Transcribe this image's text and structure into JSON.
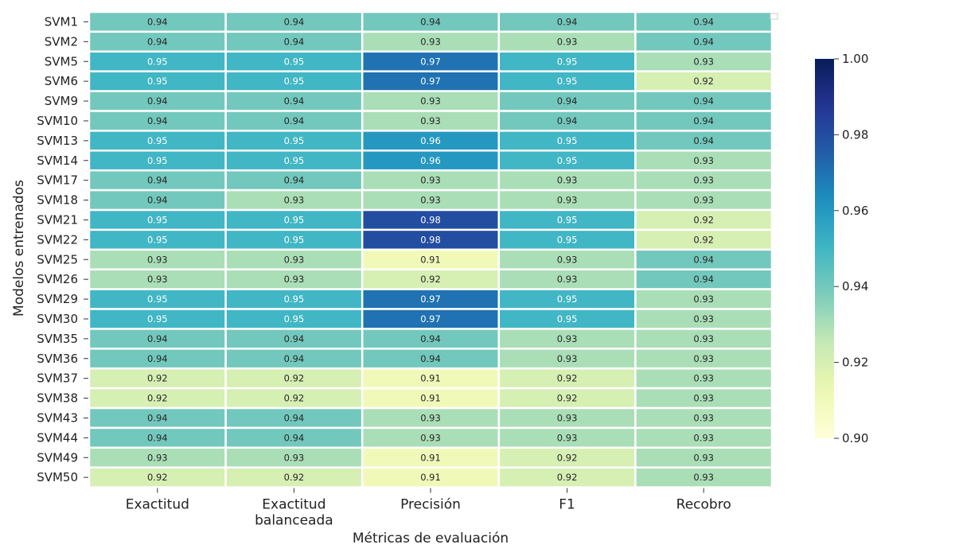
{
  "chart_data": {
    "type": "heatmap",
    "title": "",
    "xlabel": "Métricas de evaluación",
    "ylabel": "Modelos entrenados",
    "columns": [
      "Exactitud",
      "Exactitud\nbalanceada",
      "Precisión",
      "F1",
      "Recobro"
    ],
    "rows": [
      "SVM1",
      "SVM2",
      "SVM5",
      "SVM6",
      "SVM9",
      "SVM10",
      "SVM13",
      "SVM14",
      "SVM17",
      "SVM18",
      "SVM21",
      "SVM22",
      "SVM25",
      "SVM26",
      "SVM29",
      "SVM30",
      "SVM35",
      "SVM36",
      "SVM37",
      "SVM38",
      "SVM43",
      "SVM44",
      "SVM49",
      "SVM50"
    ],
    "values": [
      [
        0.94,
        0.94,
        0.94,
        0.94,
        0.94
      ],
      [
        0.94,
        0.94,
        0.93,
        0.93,
        0.94
      ],
      [
        0.95,
        0.95,
        0.97,
        0.95,
        0.93
      ],
      [
        0.95,
        0.95,
        0.97,
        0.95,
        0.92
      ],
      [
        0.94,
        0.94,
        0.93,
        0.94,
        0.94
      ],
      [
        0.94,
        0.94,
        0.93,
        0.94,
        0.94
      ],
      [
        0.95,
        0.95,
        0.96,
        0.95,
        0.94
      ],
      [
        0.95,
        0.95,
        0.96,
        0.95,
        0.93
      ],
      [
        0.94,
        0.94,
        0.93,
        0.93,
        0.93
      ],
      [
        0.94,
        0.93,
        0.93,
        0.93,
        0.93
      ],
      [
        0.95,
        0.95,
        0.98,
        0.95,
        0.92
      ],
      [
        0.95,
        0.95,
        0.98,
        0.95,
        0.92
      ],
      [
        0.93,
        0.93,
        0.91,
        0.93,
        0.94
      ],
      [
        0.93,
        0.93,
        0.92,
        0.93,
        0.94
      ],
      [
        0.95,
        0.95,
        0.97,
        0.95,
        0.93
      ],
      [
        0.95,
        0.95,
        0.97,
        0.95,
        0.93
      ],
      [
        0.94,
        0.94,
        0.94,
        0.93,
        0.93
      ],
      [
        0.94,
        0.94,
        0.94,
        0.93,
        0.93
      ],
      [
        0.92,
        0.92,
        0.91,
        0.92,
        0.93
      ],
      [
        0.92,
        0.92,
        0.91,
        0.92,
        0.93
      ],
      [
        0.94,
        0.94,
        0.93,
        0.93,
        0.93
      ],
      [
        0.94,
        0.94,
        0.93,
        0.93,
        0.93
      ],
      [
        0.93,
        0.93,
        0.91,
        0.92,
        0.93
      ],
      [
        0.92,
        0.92,
        0.91,
        0.92,
        0.93
      ]
    ],
    "value_range": [
      0.9,
      1.0
    ],
    "colormap": "YlGnBu",
    "colorbar_ticks": [
      "0.90",
      "0.92",
      "0.94",
      "0.96",
      "0.98",
      "1.00"
    ],
    "grid": false,
    "legend_placement": "colorbar-right"
  }
}
